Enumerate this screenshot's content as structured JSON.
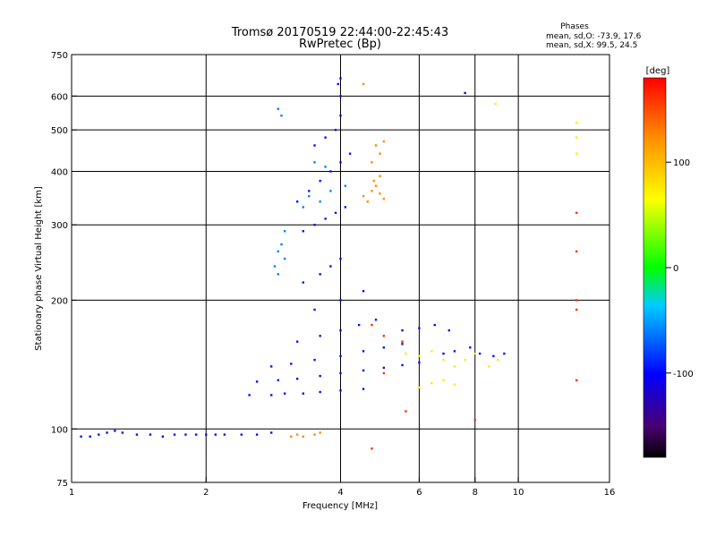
{
  "chart_data": {
    "type": "scatter",
    "title": "Tromsø 20170519 22:44:00-22:45:43",
    "subtitle": "RwPretec (Bp)",
    "xlabel": "Frequency [MHz]",
    "ylabel": "Stationary phase Virtual Height [km]",
    "x_scale": "log",
    "y_scale": "log",
    "xlim": [
      1,
      16
    ],
    "ylim": [
      75,
      750
    ],
    "x_ticks": [
      1,
      2,
      4,
      6,
      8,
      10,
      16
    ],
    "y_ticks": [
      75,
      100,
      200,
      300,
      400,
      500,
      600,
      750
    ],
    "x_grid": [
      2,
      4,
      6,
      8,
      10
    ],
    "y_grid": [
      100,
      200,
      300,
      400,
      500,
      600
    ],
    "grid": true,
    "legend_text": {
      "heading": "Phases",
      "line_o": "mean, sd,O:  -73.9, 17.6",
      "line_x": "mean, sd,X:  99.5, 24.5"
    },
    "colorbar": {
      "label": "[deg]",
      "ticks": [
        100,
        0,
        -100
      ],
      "range": [
        -180,
        180
      ]
    },
    "series": [
      {
        "color_deg": -95,
        "points": [
          [
            1.05,
            96
          ],
          [
            1.1,
            96
          ],
          [
            1.15,
            97
          ],
          [
            1.2,
            98
          ],
          [
            1.25,
            99
          ],
          [
            1.3,
            98
          ],
          [
            1.4,
            97
          ],
          [
            1.5,
            97
          ],
          [
            1.6,
            96
          ],
          [
            1.7,
            97
          ],
          [
            1.8,
            97
          ],
          [
            1.9,
            97
          ],
          [
            2.0,
            97
          ],
          [
            2.1,
            97
          ],
          [
            2.2,
            97
          ],
          [
            2.4,
            97
          ],
          [
            2.6,
            97
          ],
          [
            2.8,
            98
          ],
          [
            2.5,
            120
          ],
          [
            2.8,
            120
          ],
          [
            3.0,
            121
          ],
          [
            3.3,
            121
          ],
          [
            3.6,
            122
          ],
          [
            4.0,
            123
          ],
          [
            4.5,
            124
          ],
          [
            2.6,
            129
          ],
          [
            2.9,
            130
          ],
          [
            3.2,
            131
          ],
          [
            3.6,
            133
          ],
          [
            4.0,
            135
          ],
          [
            4.5,
            137
          ],
          [
            5.0,
            139
          ],
          [
            5.5,
            141
          ],
          [
            6.0,
            143
          ],
          [
            2.8,
            140
          ],
          [
            3.1,
            142
          ],
          [
            3.5,
            145
          ],
          [
            4.0,
            148
          ],
          [
            4.5,
            152
          ],
          [
            5.0,
            155
          ],
          [
            5.5,
            158
          ],
          [
            3.2,
            160
          ],
          [
            3.6,
            165
          ],
          [
            4.0,
            170
          ],
          [
            4.4,
            175
          ],
          [
            4.8,
            180
          ],
          [
            3.5,
            190
          ],
          [
            4.0,
            200
          ],
          [
            4.5,
            210
          ],
          [
            3.3,
            220
          ],
          [
            3.6,
            230
          ],
          [
            3.8,
            240
          ],
          [
            4.0,
            250
          ],
          [
            3.3,
            290
          ],
          [
            3.5,
            300
          ],
          [
            3.7,
            310
          ],
          [
            3.9,
            320
          ],
          [
            4.1,
            330
          ],
          [
            3.2,
            340
          ],
          [
            3.4,
            360
          ],
          [
            3.6,
            380
          ],
          [
            3.8,
            400
          ],
          [
            4.0,
            420
          ],
          [
            4.2,
            440
          ],
          [
            3.5,
            460
          ],
          [
            3.7,
            480
          ],
          [
            3.9,
            500
          ],
          [
            4.0,
            540
          ],
          [
            4.0,
            600
          ],
          [
            3.95,
            640
          ],
          [
            4.0,
            660
          ],
          [
            7.6,
            610
          ],
          [
            6.8,
            150
          ],
          [
            7.2,
            152
          ],
          [
            7.8,
            155
          ],
          [
            8.2,
            150
          ],
          [
            8.8,
            148
          ],
          [
            9.3,
            150
          ],
          [
            5.5,
            170
          ],
          [
            6.0,
            172
          ],
          [
            6.5,
            175
          ],
          [
            7.0,
            170
          ]
        ]
      },
      {
        "color_deg": -60,
        "points": [
          [
            2.9,
            260
          ],
          [
            2.95,
            270
          ],
          [
            3.0,
            250
          ],
          [
            2.85,
            240
          ],
          [
            2.9,
            230
          ],
          [
            3.0,
            290
          ],
          [
            2.9,
            560
          ],
          [
            2.95,
            540
          ],
          [
            3.4,
            350
          ],
          [
            3.6,
            340
          ],
          [
            3.8,
            360
          ],
          [
            4.1,
            370
          ],
          [
            3.5,
            420
          ],
          [
            3.7,
            410
          ],
          [
            3.3,
            330
          ]
        ]
      },
      {
        "color_deg": 125,
        "points": [
          [
            4.5,
            350
          ],
          [
            4.7,
            360
          ],
          [
            4.8,
            370
          ],
          [
            4.9,
            355
          ],
          [
            5.0,
            345
          ],
          [
            4.6,
            340
          ],
          [
            4.75,
            380
          ],
          [
            4.9,
            390
          ],
          [
            4.7,
            420
          ],
          [
            4.9,
            440
          ],
          [
            4.8,
            460
          ],
          [
            5.0,
            470
          ],
          [
            3.1,
            96
          ],
          [
            3.2,
            97
          ],
          [
            3.3,
            96
          ],
          [
            3.5,
            97
          ],
          [
            3.6,
            98
          ],
          [
            4.5,
            640
          ]
        ]
      },
      {
        "color_deg": 75,
        "points": [
          [
            5.6,
            150
          ],
          [
            6.0,
            148
          ],
          [
            6.4,
            152
          ],
          [
            6.8,
            145
          ],
          [
            7.2,
            140
          ],
          [
            7.6,
            145
          ],
          [
            8.0,
            150
          ],
          [
            8.6,
            140
          ],
          [
            9.0,
            145
          ],
          [
            6.0,
            125
          ],
          [
            6.4,
            128
          ],
          [
            6.8,
            130
          ],
          [
            7.2,
            127
          ],
          [
            13.5,
            440
          ],
          [
            13.5,
            520
          ],
          [
            13.5,
            480
          ],
          [
            8.9,
            575
          ]
        ]
      },
      {
        "color_deg": 160,
        "points": [
          [
            5.0,
            165
          ],
          [
            5.5,
            160
          ],
          [
            4.7,
            175
          ],
          [
            5.0,
            135
          ],
          [
            13.5,
            320
          ],
          [
            13.5,
            260
          ],
          [
            13.5,
            200
          ],
          [
            13.5,
            190
          ],
          [
            13.5,
            130
          ],
          [
            4.7,
            90
          ],
          [
            8.0,
            105
          ],
          [
            5.6,
            110
          ]
        ]
      }
    ]
  }
}
